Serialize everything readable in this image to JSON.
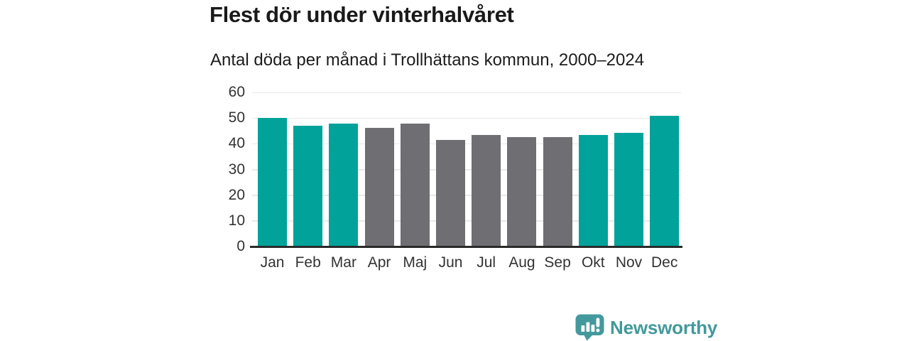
{
  "title": "Flest dör under vinterhalvåret",
  "subtitle": "Antal döda per månad i Trollhättans kommun, 2000–2024",
  "branding": {
    "logo_text": "Newsworthy",
    "logo_icon": "speech-bubble-bar-chart-icon"
  },
  "palette": {
    "teal": "#00a29a",
    "gray": "#6e6e73",
    "brand": "#43999b",
    "gridline": "#e9e9e9",
    "axis": "#2b2b2b",
    "label": "#333333",
    "title_text": "#1a1a1a"
  },
  "chart_data": {
    "type": "bar",
    "title": "Flest dör under vinterhalvåret",
    "subtitle": "Antal döda per månad i Trollhättans kommun, 2000–2024",
    "categories": [
      "Jan",
      "Feb",
      "Mar",
      "Apr",
      "Maj",
      "Jun",
      "Jul",
      "Aug",
      "Sep",
      "Okt",
      "Nov",
      "Dec"
    ],
    "values": [
      50.1,
      47.0,
      47.9,
      46.2,
      47.8,
      41.6,
      43.5,
      42.6,
      42.6,
      43.3,
      44.2,
      50.9
    ],
    "bar_color_keys": [
      "teal",
      "teal",
      "teal",
      "gray",
      "gray",
      "gray",
      "gray",
      "gray",
      "gray",
      "teal",
      "teal",
      "teal"
    ],
    "xlabel": "",
    "ylabel": "",
    "ylim": [
      0,
      60
    ],
    "yticks": [
      0,
      10,
      20,
      30,
      40,
      50,
      60
    ],
    "grid": true,
    "legend": false
  }
}
